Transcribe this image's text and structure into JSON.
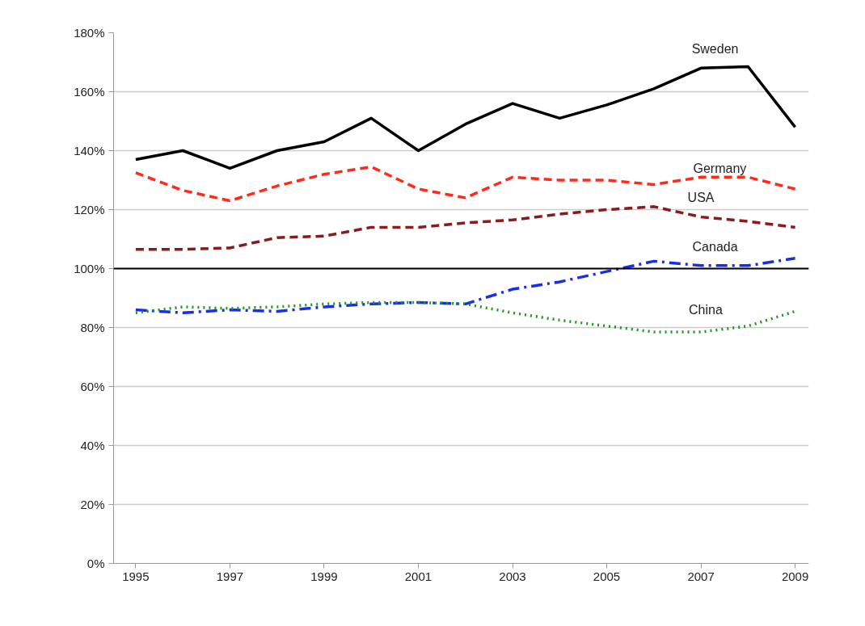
{
  "chart_data": {
    "type": "line",
    "x": [
      1995,
      1996,
      1997,
      1998,
      1999,
      2000,
      2001,
      2002,
      2003,
      2004,
      2005,
      2006,
      2007,
      2008,
      2009
    ],
    "series": [
      {
        "name": "Sweden",
        "color": "#000000",
        "line_style": "solid",
        "values": [
          137,
          140,
          134,
          140,
          143,
          151,
          140,
          149,
          156,
          151,
          155.5,
          161,
          168,
          168.5,
          148
        ]
      },
      {
        "name": "Germany",
        "color": "#ff2a1a",
        "line_style": "dashed",
        "values": [
          132.5,
          126.5,
          123,
          128,
          132,
          134.5,
          127,
          124,
          131,
          130,
          130,
          128.5,
          131,
          131,
          127
        ]
      },
      {
        "name": "USA",
        "color": "#8b1a1a",
        "line_style": "dashed",
        "values": [
          106.5,
          106.5,
          107,
          110.5,
          111,
          114,
          114,
          115.5,
          116.5,
          118.5,
          120,
          121,
          117.5,
          116,
          114
        ]
      },
      {
        "name": "Canada",
        "color": "#1a2ee8",
        "line_style": "dashdot",
        "values": [
          86,
          85,
          86,
          85.5,
          87,
          88,
          88.5,
          88,
          93,
          95.5,
          99,
          102.5,
          101,
          101,
          103.5
        ]
      },
      {
        "name": "China",
        "color": "#1a9a1a",
        "line_style": "dotted",
        "values": [
          85,
          87,
          86.5,
          87,
          88,
          88.5,
          88.5,
          88,
          85,
          82.5,
          80.5,
          78.5,
          78.5,
          80.5,
          85.5
        ]
      }
    ],
    "xlim": [
      1994.53,
      2009.29
    ],
    "xticks": [
      1995,
      1997,
      1999,
      2001,
      2003,
      2005,
      2007,
      2009
    ],
    "ylim": [
      0,
      180
    ],
    "yticks": [
      {
        "value": 0,
        "label": "0%"
      },
      {
        "value": 20,
        "label": "20%"
      },
      {
        "value": 40,
        "label": "40%"
      },
      {
        "value": 60,
        "label": "60%"
      },
      {
        "value": 80,
        "label": "80%"
      },
      {
        "value": 100,
        "label": "100%"
      },
      {
        "value": 120,
        "label": "120%"
      },
      {
        "value": 140,
        "label": "140%"
      },
      {
        "value": 160,
        "label": "160%"
      },
      {
        "value": 180,
        "label": "180%"
      }
    ],
    "ref_lines": [
      {
        "axis": "y",
        "value": 100,
        "color": "#000000"
      }
    ],
    "grid": "y"
  }
}
